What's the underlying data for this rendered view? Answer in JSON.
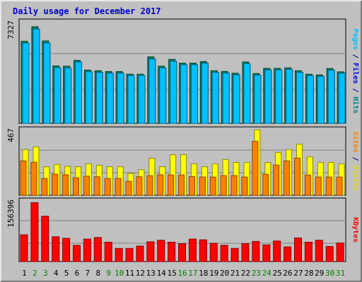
{
  "chart_data": {
    "type": "bar",
    "title": "Daily usage for December 2017",
    "categories": [
      "1",
      "2",
      "3",
      "4",
      "5",
      "6",
      "7",
      "8",
      "9",
      "10",
      "11",
      "12",
      "13",
      "14",
      "15",
      "16",
      "17",
      "18",
      "19",
      "20",
      "21",
      "22",
      "23",
      "24",
      "25",
      "26",
      "27",
      "28",
      "29",
      "30",
      "31"
    ],
    "weekend_days": [
      "2",
      "3",
      "9",
      "10",
      "16",
      "17",
      "23",
      "24",
      "30",
      "31"
    ],
    "panels": [
      {
        "ymax_label": "7327",
        "ymax": 7327,
        "axis_label_parts": [
          {
            "text": "Pages",
            "color": "#00c0ff"
          },
          {
            "text": " / ",
            "color": "#000080"
          },
          {
            "text": "Files",
            "color": "#0000ff"
          },
          {
            "text": " / ",
            "color": "#000080"
          },
          {
            "text": "Hits",
            "color": "#008080"
          }
        ],
        "series": [
          {
            "name": "Hits",
            "color": "#008060",
            "values": [
              5930,
              6980,
              5950,
              4150,
              4130,
              4550,
              3850,
              3800,
              3740,
              3740,
              3550,
              3550,
              4800,
              4130,
              4620,
              4350,
              4350,
              4460,
              3800,
              3750,
              3620,
              4430,
              3600,
              3970,
              3970,
              4010,
              3800,
              3550,
              3500,
              3960,
              3720
            ]
          },
          {
            "name": "Files",
            "color": "#0000ff",
            "values": [
              5800,
              6800,
              5800,
              4020,
              4000,
              4420,
              3720,
              3680,
              3620,
              3620,
              3450,
              3460,
              4650,
              4000,
              4480,
              4230,
              4230,
              4340,
              3680,
              3630,
              3500,
              4300,
              3480,
              3850,
              3850,
              3890,
              3680,
              3440,
              3390,
              3840,
              3620
            ]
          },
          {
            "name": "Pages",
            "color": "#00c0ff",
            "values": [
              5800,
              6800,
              5800,
              4020,
              4000,
              4420,
              3720,
              3680,
              3620,
              3620,
              3450,
              3460,
              4650,
              4000,
              4480,
              4230,
              4230,
              4340,
              3680,
              3630,
              3500,
              4300,
              3480,
              3850,
              3850,
              3890,
              3680,
              3440,
              3390,
              3840,
              3620
            ]
          }
        ]
      },
      {
        "ymax_label": "467",
        "ymax": 467,
        "axis_label_parts": [
          {
            "text": "Sites",
            "color": "#ff8000"
          },
          {
            "text": " / ",
            "color": "#000080"
          },
          {
            "text": "Visits",
            "color": "#e0e000"
          }
        ],
        "series": [
          {
            "name": "Visits",
            "color": "#ffff00",
            "values": [
              325,
              345,
              203,
              220,
              206,
              203,
              224,
              214,
              203,
              203,
              156,
              182,
              264,
              203,
              289,
              289,
              224,
              203,
              224,
              254,
              234,
              234,
              467,
              233,
              305,
              325,
              364,
              274,
              234,
              234,
              224
            ]
          },
          {
            "name": "Sites",
            "color": "#ff8000",
            "values": [
              245,
              235,
              120,
              150,
              146,
              125,
              136,
              132,
              120,
              120,
              100,
              132,
              140,
              146,
              145,
              145,
              133,
              130,
              130,
              140,
              140,
              130,
              385,
              150,
              215,
              245,
              265,
              145,
              130,
              130,
              130
            ]
          }
        ]
      },
      {
        "ymax_label": "156396",
        "ymax": 156396,
        "axis_label_parts": [
          {
            "text": "KBytes",
            "color": "#ff0000"
          }
        ],
        "series": [
          {
            "name": "KBytes",
            "color": "#ff0000",
            "values": [
              69000,
              152000,
              117000,
              64000,
              60000,
              42000,
              58000,
              62000,
              50000,
              34000,
              34000,
              40000,
              51000,
              55000,
              50000,
              46000,
              58000,
              56000,
              47000,
              42000,
              34000,
              46000,
              52000,
              43000,
              53000,
              38000,
              61000,
              50000,
              55000,
              39000,
              48000
            ]
          }
        ]
      }
    ]
  }
}
